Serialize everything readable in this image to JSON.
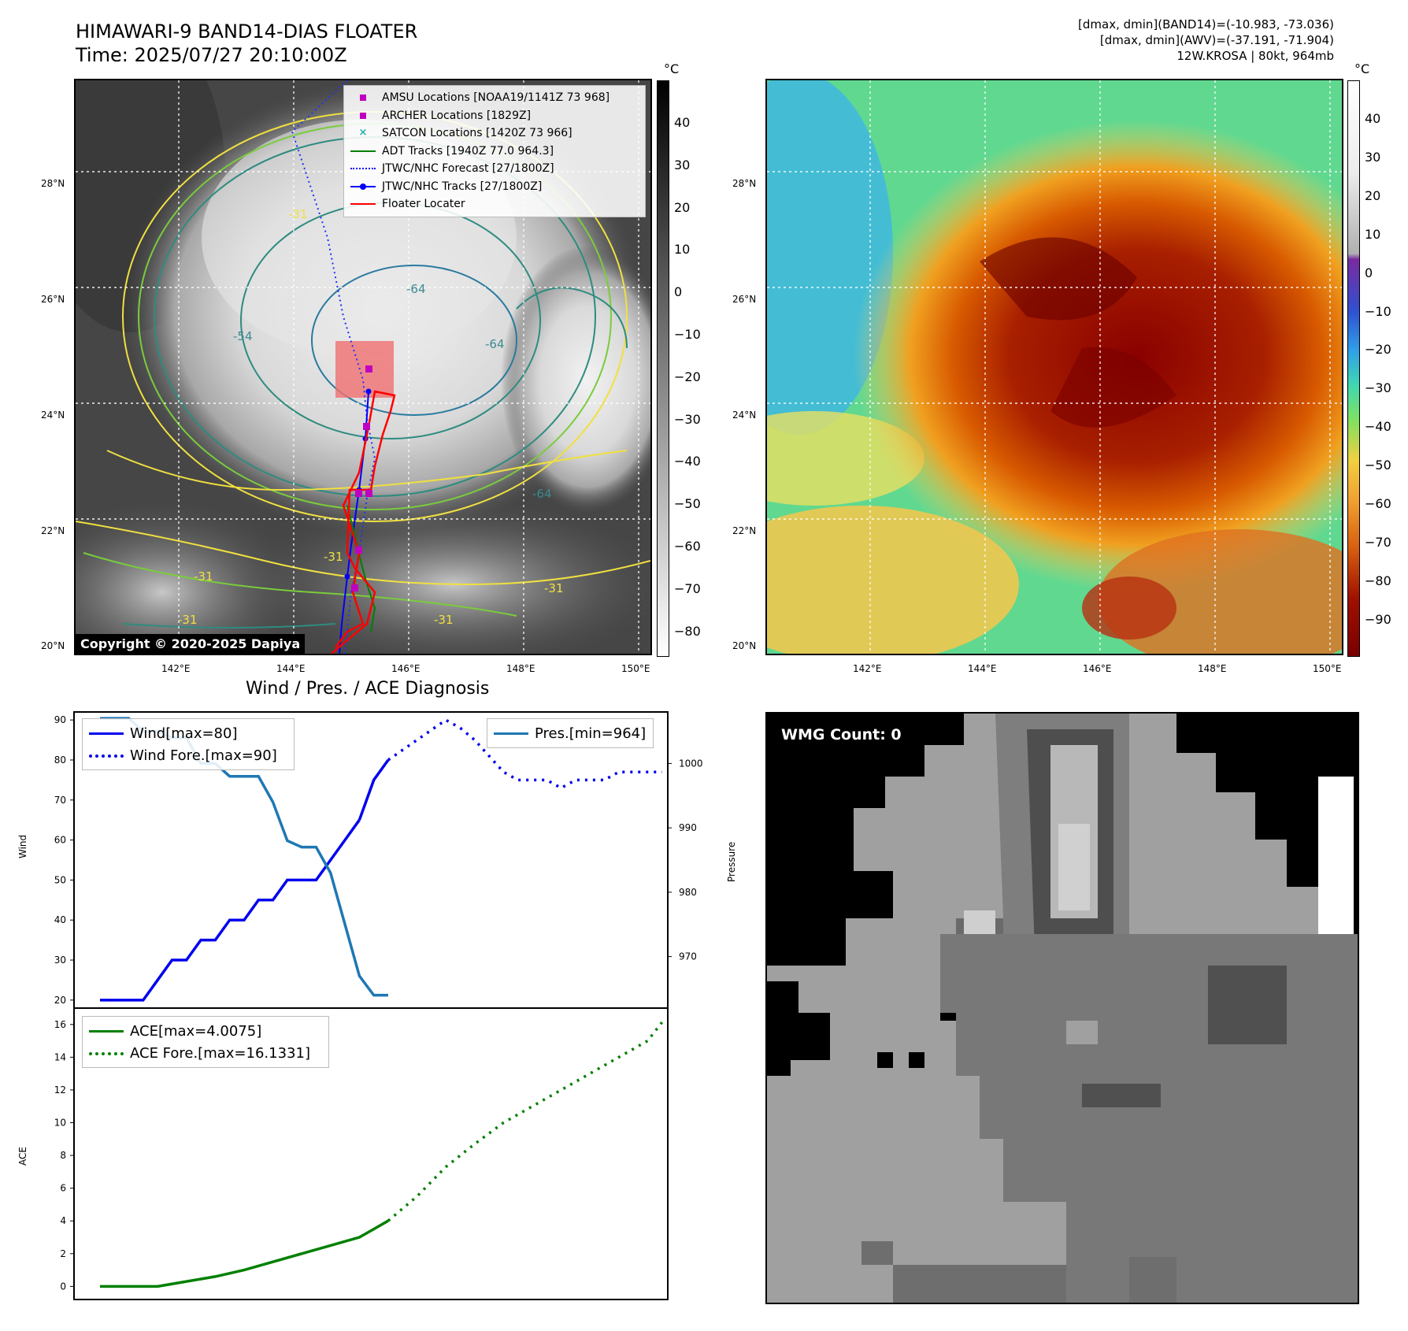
{
  "header": {
    "title": "HIMAWARI-9 BAND14-DIAS FLOATER",
    "time": "Time: 2025/07/27 20:10:00Z",
    "info_line1": "[dmax, dmin](BAND14)=(-10.983, -73.036)",
    "info_line2": "[dmax, dmin](AWV)=(-37.191, -71.904)",
    "info_line3": "12W.KROSA | 80kt, 964mb"
  },
  "map": {
    "lat_labels": [
      "28°N",
      "26°N",
      "24°N",
      "22°N",
      "20°N"
    ],
    "lon_labels": [
      "142°E",
      "144°E",
      "146°E",
      "148°E",
      "150°E"
    ],
    "contour_labels": [
      "-64",
      "-54",
      "-64",
      "-31",
      "-31",
      "-31",
      "-64",
      "-31",
      "-31",
      "-31"
    ],
    "copyright": "Copyright © 2020-2025 Dapiya",
    "legend": [
      {
        "label": "AMSU Locations [NOAA19/1141Z 73 968]",
        "symbol": "square",
        "color": "#c000c0"
      },
      {
        "label": "ARCHER Locations [1829Z]",
        "symbol": "square",
        "color": "#c000c0"
      },
      {
        "label": "SATCON Locations [1420Z 73 966]",
        "symbol": "cross",
        "color": "#20b2aa"
      },
      {
        "label": "ADT Tracks [1940Z 77.0 964.3]",
        "symbol": "line",
        "color": "#008000"
      },
      {
        "label": "JTWC/NHC Forecast [27/1800Z]",
        "symbol": "dotted",
        "color": "#0000ff"
      },
      {
        "label": "JTWC/NHC Tracks [27/1800Z]",
        "symbol": "line-dot",
        "color": "#0000ff"
      },
      {
        "label": "Floater Locater",
        "symbol": "line",
        "color": "#ff0000"
      }
    ]
  },
  "colorbar_left": {
    "unit": "°C",
    "ticks": [
      "40",
      "30",
      "20",
      "10",
      "0",
      "−10",
      "−20",
      "−30",
      "−40",
      "−50",
      "−60",
      "−70",
      "−80"
    ]
  },
  "colorbar_right": {
    "unit": "°C",
    "ticks": [
      "40",
      "30",
      "20",
      "10",
      "0",
      "−10",
      "−20",
      "−30",
      "−40",
      "−50",
      "−60",
      "−70",
      "−80",
      "−90"
    ]
  },
  "diagnosis": {
    "title": "Wind / Pres. / ACE Diagnosis",
    "wind_ylabel": "Wind",
    "pres_ylabel": "Pressure",
    "ace_ylabel": "ACE",
    "legend_wind": "Wind[max=80]",
    "legend_wind_fore": "Wind Fore.[max=90]",
    "legend_pres": "Pres.[min=964]",
    "legend_ace": "ACE[max=4.0075]",
    "legend_ace_fore": "ACE Fore.[max=16.1331]"
  },
  "wmg": {
    "label": "WMG Count: 0"
  },
  "colors": {
    "wind": "#0000ee",
    "pres": "#1f77b4",
    "ace": "#008000"
  },
  "chart_data": [
    {
      "type": "line",
      "xlabel": "",
      "ylabel": "Wind",
      "ylim": [
        18,
        92
      ],
      "yticks": [
        20,
        30,
        40,
        50,
        60,
        70,
        80,
        90
      ],
      "series": [
        {
          "name": "Wind[max=80]",
          "style": "solid",
          "x": [
            0,
            1,
            2,
            3,
            4,
            5,
            6,
            7,
            8,
            9,
            10,
            11,
            12,
            13,
            14,
            15,
            16,
            17,
            18
          ],
          "values": [
            20,
            20,
            20,
            20,
            25,
            30,
            30,
            35,
            35,
            40,
            40,
            45,
            45,
            50,
            50,
            50,
            55,
            60,
            65
          ]
        },
        {
          "name": "Wind[max=80]",
          "style": "solid",
          "x": [
            18,
            19,
            20
          ],
          "values": [
            65,
            75,
            80
          ]
        },
        {
          "name": "Wind Fore.[max=90]",
          "style": "dotted",
          "x": [
            20,
            22,
            24,
            25,
            26,
            28,
            29,
            30,
            31,
            32,
            33,
            34,
            35,
            36,
            37,
            38,
            39
          ],
          "values": [
            80,
            85,
            90,
            88,
            85,
            77,
            75,
            75,
            75,
            73,
            75,
            75,
            75,
            77,
            77,
            77,
            77
          ]
        }
      ]
    },
    {
      "type": "line",
      "ylabel": "Pressure",
      "ylim": [
        962,
        1008
      ],
      "yticks": [
        970,
        980,
        990,
        1000
      ],
      "series": [
        {
          "name": "Pres.[min=964]",
          "x": [
            0,
            1,
            2,
            3,
            4,
            5,
            6,
            7,
            8,
            9,
            10,
            11,
            12,
            13,
            14,
            15,
            16,
            17,
            18,
            19,
            20
          ],
          "values": [
            1007,
            1007,
            1007,
            1005,
            1005,
            1004,
            1004,
            1000,
            1000,
            998,
            998,
            998,
            994,
            988,
            987,
            987,
            983,
            975,
            967,
            964,
            964
          ]
        }
      ]
    },
    {
      "type": "line",
      "ylabel": "ACE",
      "ylim": [
        -0.8,
        17
      ],
      "yticks": [
        0,
        2,
        4,
        6,
        8,
        10,
        12,
        14,
        16
      ],
      "series": [
        {
          "name": "ACE[max=4.0075]",
          "style": "solid",
          "x": [
            0,
            2,
            4,
            6,
            8,
            10,
            12,
            14,
            16,
            18,
            19,
            20
          ],
          "values": [
            0,
            0,
            0,
            0.3,
            0.6,
            1.0,
            1.5,
            2.0,
            2.5,
            3.0,
            3.5,
            4.0075
          ]
        },
        {
          "name": "ACE Fore.[max=16.1331]",
          "style": "dotted",
          "x": [
            20,
            22,
            24,
            26,
            28,
            30,
            32,
            34,
            36,
            38,
            39
          ],
          "values": [
            4.0075,
            5.5,
            7.3,
            8.7,
            10.0,
            11.0,
            12.0,
            13.0,
            14.0,
            15.0,
            16.1331
          ]
        }
      ]
    }
  ]
}
